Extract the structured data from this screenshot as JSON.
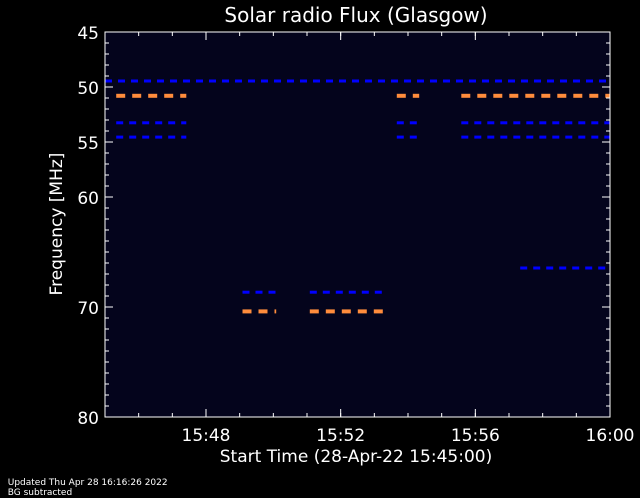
{
  "chart_data": {
    "type": "heatmap",
    "title": "Solar radio Flux (Glasgow)",
    "xlabel": "Start Time (28-Apr-22 15:45:00)",
    "ylabel": "Frequency [MHz]",
    "x_range": [
      "15:45:00",
      "16:00:00"
    ],
    "y_range": [
      45,
      80
    ],
    "y_axis_inverted": true,
    "x_ticks": [
      "15:48",
      "15:52",
      "15:56",
      "16:00"
    ],
    "y_ticks": [
      45,
      50,
      55,
      60,
      70,
      80
    ],
    "background_color": "#000000",
    "plot_background_color": "#04041c",
    "colors": {
      "low": "#0000ff",
      "high": "#ff8c3c"
    },
    "emission_features": [
      {
        "freq_mhz": 49.5,
        "start": "15:45:00",
        "end": "16:00:00",
        "level": "low"
      },
      {
        "freq_mhz": 50.8,
        "start": "15:45:20",
        "end": "15:47:25",
        "level": "high"
      },
      {
        "freq_mhz": 50.8,
        "start": "15:53:40",
        "end": "15:54:20",
        "level": "high"
      },
      {
        "freq_mhz": 50.8,
        "start": "15:55:35",
        "end": "16:00:00",
        "level": "high"
      },
      {
        "freq_mhz": 53.3,
        "start": "15:45:20",
        "end": "15:47:25",
        "level": "low"
      },
      {
        "freq_mhz": 53.3,
        "start": "15:53:40",
        "end": "15:54:20",
        "level": "low"
      },
      {
        "freq_mhz": 53.3,
        "start": "15:55:35",
        "end": "16:00:00",
        "level": "low"
      },
      {
        "freq_mhz": 54.6,
        "start": "15:45:20",
        "end": "15:47:25",
        "level": "low"
      },
      {
        "freq_mhz": 54.6,
        "start": "15:53:40",
        "end": "15:54:20",
        "level": "low"
      },
      {
        "freq_mhz": 54.6,
        "start": "15:55:35",
        "end": "16:00:00",
        "level": "low"
      },
      {
        "freq_mhz": 68.7,
        "start": "15:49:05",
        "end": "15:50:05",
        "level": "low"
      },
      {
        "freq_mhz": 68.7,
        "start": "15:51:05",
        "end": "15:53:20",
        "level": "low"
      },
      {
        "freq_mhz": 70.4,
        "start": "15:49:05",
        "end": "15:50:05",
        "level": "high"
      },
      {
        "freq_mhz": 70.4,
        "start": "15:51:05",
        "end": "15:53:20",
        "level": "high"
      },
      {
        "freq_mhz": 66.5,
        "start": "15:57:20",
        "end": "16:00:00",
        "level": "low"
      }
    ]
  },
  "footer": {
    "updated": "Updated Thu Apr 28 16:16:26 2022",
    "note": "BG subtracted"
  }
}
